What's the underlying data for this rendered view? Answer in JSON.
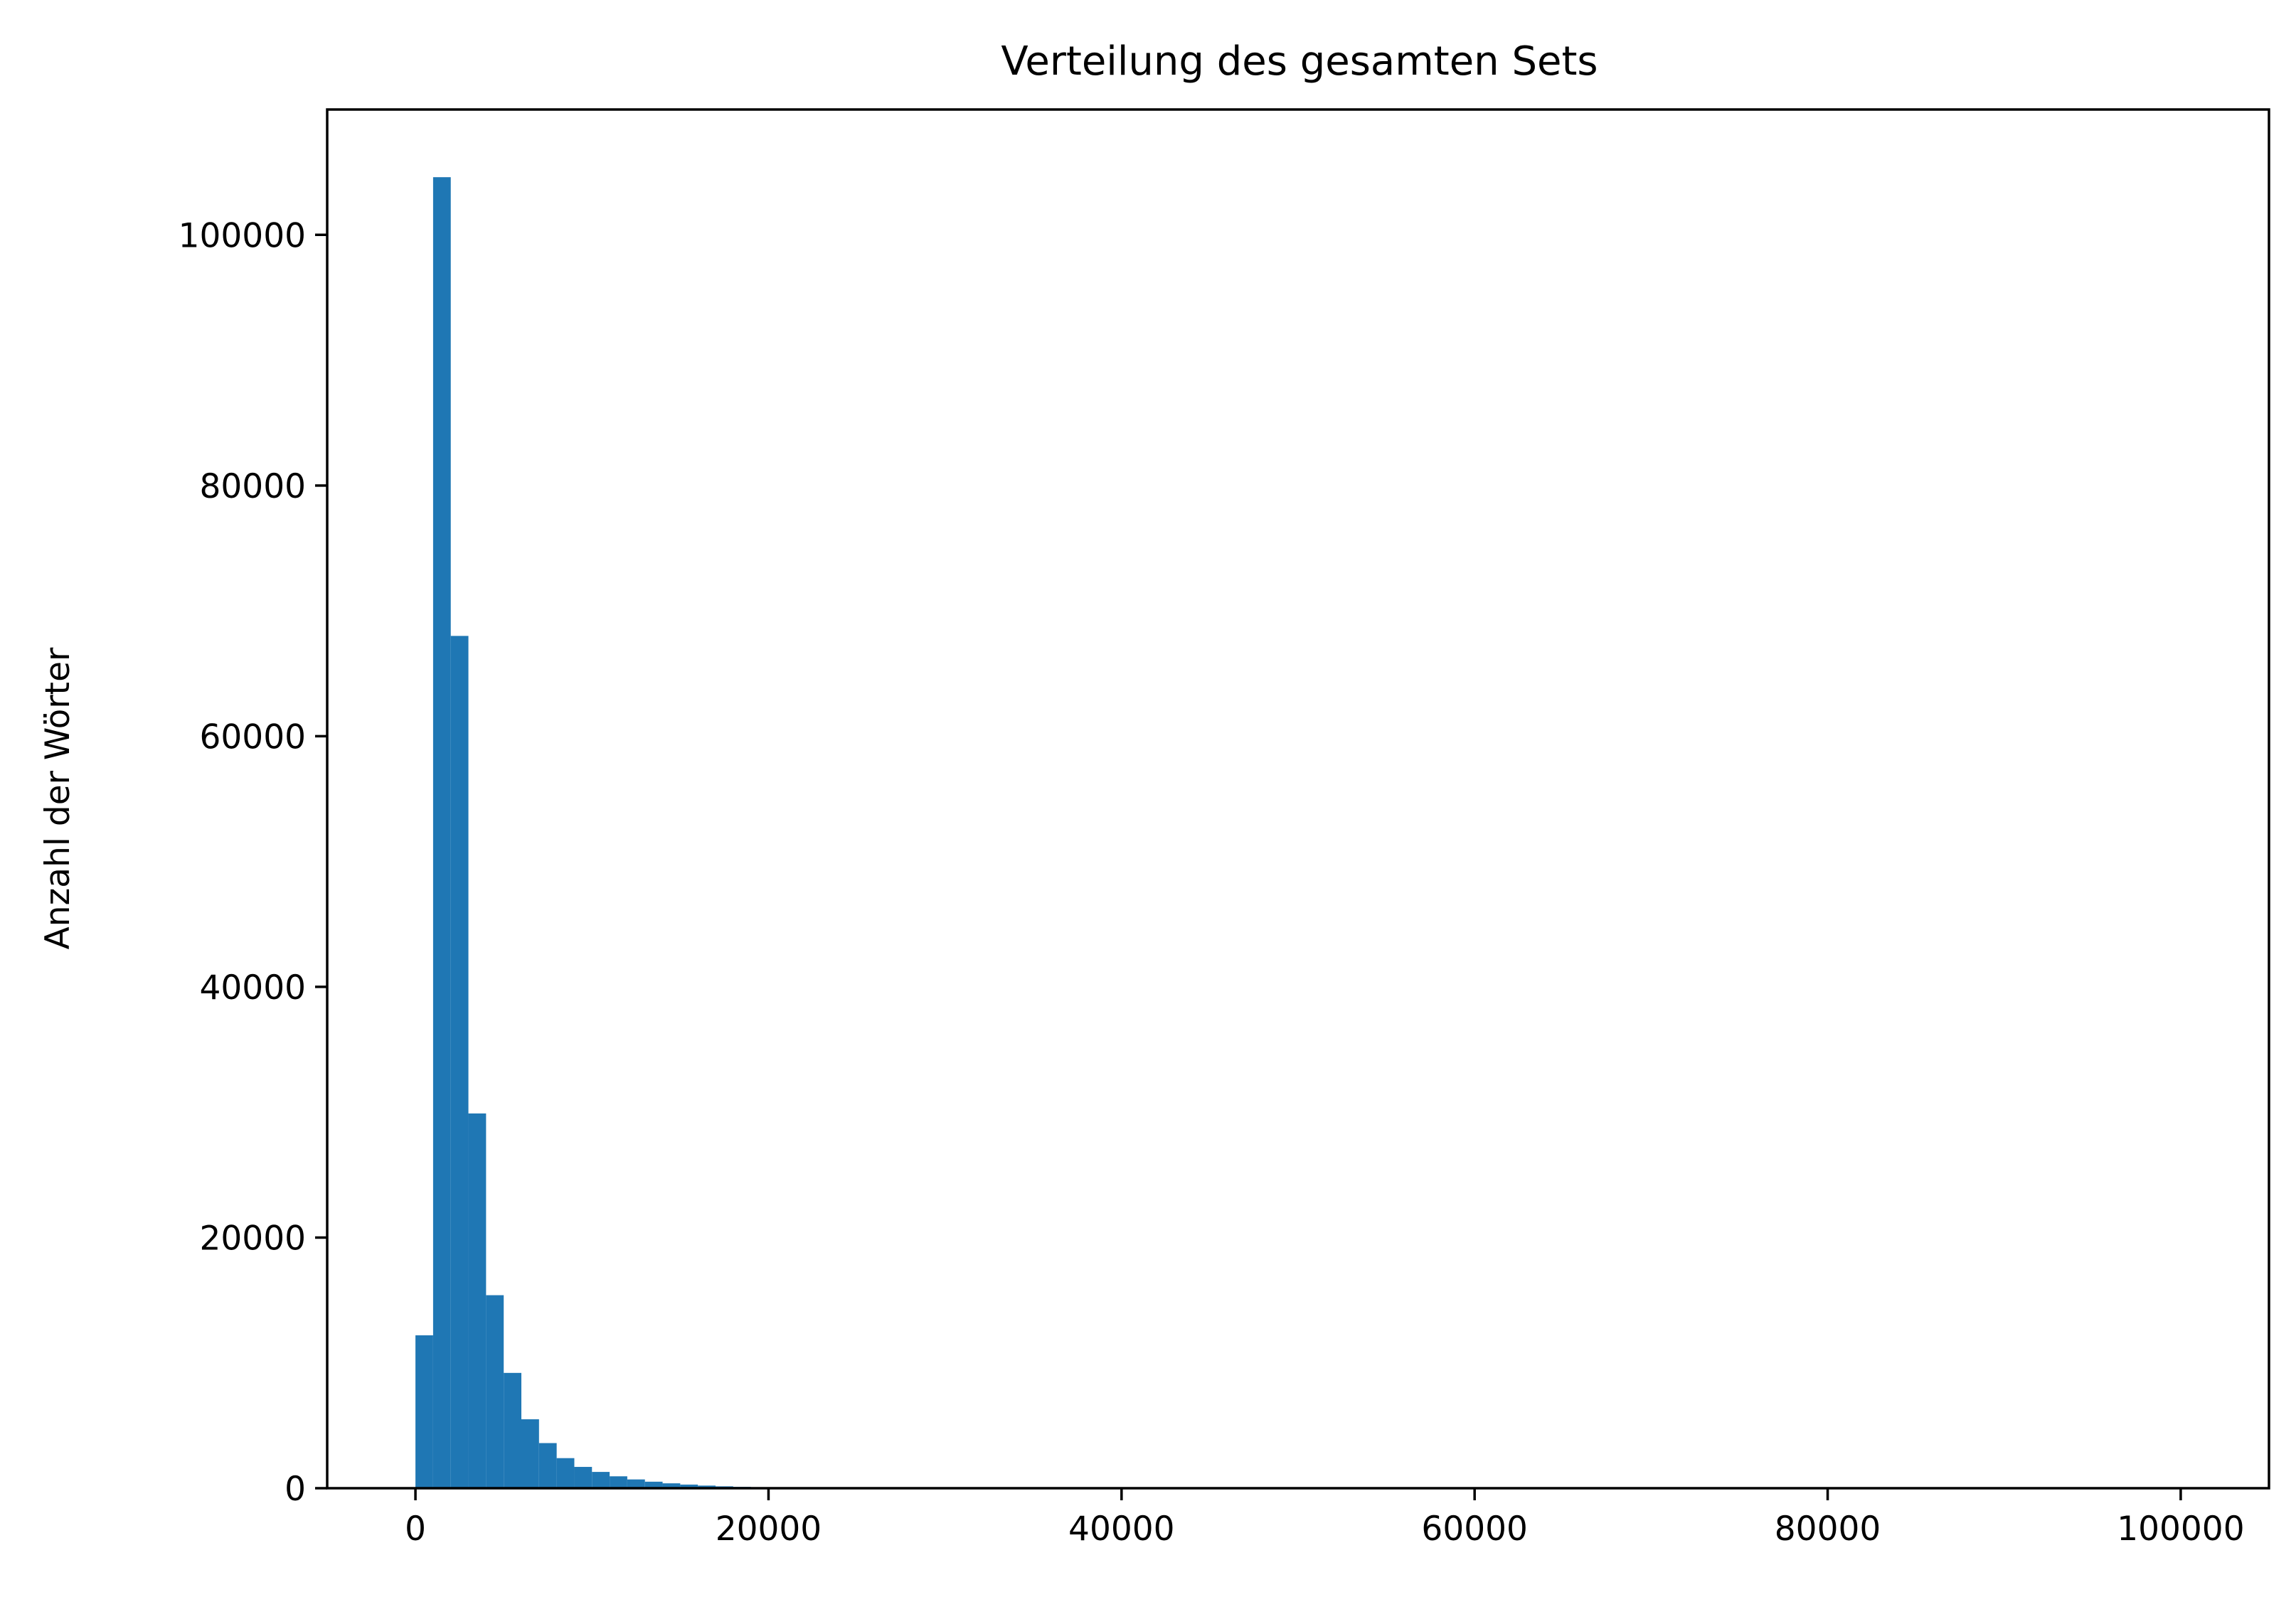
{
  "chart_data": {
    "type": "bar",
    "title": "Verteilung des gesamten Sets",
    "xlabel": "",
    "ylabel": "Anzahl der Wörter",
    "xlim": [
      -5000,
      105000
    ],
    "ylim": [
      0,
      110000
    ],
    "x_ticks": [
      0,
      20000,
      40000,
      60000,
      80000,
      100000
    ],
    "x_tick_labels": [
      "0",
      "20000",
      "40000",
      "60000",
      "80000",
      "100000"
    ],
    "y_ticks": [
      0,
      20000,
      40000,
      60000,
      80000,
      100000
    ],
    "y_tick_labels": [
      "0",
      "20000",
      "40000",
      "60000",
      "80000",
      "100000"
    ],
    "bar_color": "#1f77b4",
    "grid": false,
    "bin_width": 1000,
    "bin_start": 0,
    "values": [
      12200,
      104600,
      68000,
      29900,
      15400,
      9200,
      5500,
      3600,
      2400,
      1700,
      1300,
      950,
      700,
      520,
      390,
      290,
      210,
      150,
      110,
      80,
      60,
      45,
      35,
      25,
      20,
      15,
      12,
      10,
      8,
      6,
      5,
      4,
      3,
      3,
      2,
      2,
      2,
      1,
      1,
      1
    ]
  }
}
